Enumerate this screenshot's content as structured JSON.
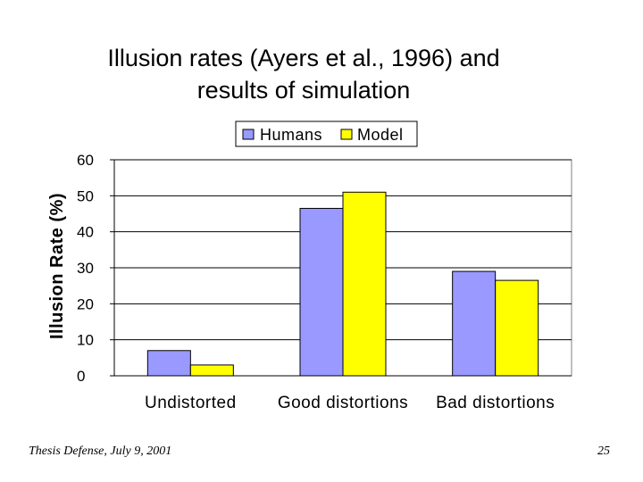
{
  "slide": {
    "footer_left": "Thesis Defense, July 9, 2001",
    "page_number": "25"
  },
  "chart_data": {
    "type": "bar",
    "title_lines": [
      "Illusion rates (Ayers et al., 1996) and",
      "results of simulation"
    ],
    "xlabel": "",
    "ylabel": "Illusion Rate (%)",
    "categories": [
      "Undistorted",
      "Good distortions",
      "Bad distortions"
    ],
    "series": [
      {
        "name": "Humans",
        "values": [
          7,
          46.5,
          29
        ],
        "color": "#9999ff"
      },
      {
        "name": "Model",
        "values": [
          3,
          51,
          26.5
        ],
        "color": "#ffff00"
      }
    ],
    "ylim": [
      0,
      60
    ],
    "yticks": [
      0,
      10,
      20,
      30,
      40,
      50,
      60
    ],
    "grid": true,
    "legend_position": "top-right"
  }
}
